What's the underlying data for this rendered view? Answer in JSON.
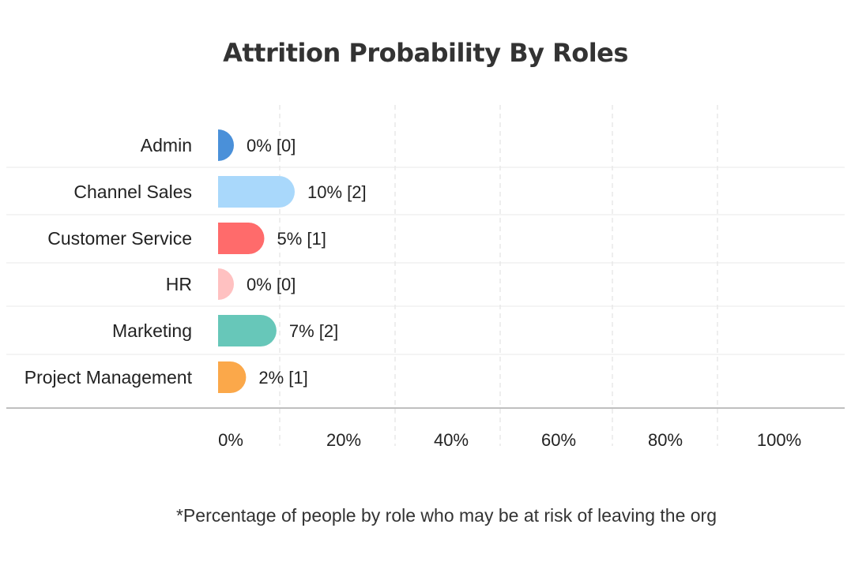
{
  "colors": {
    "admin": "#4a90d9",
    "channel_sales": "#a9d8fb",
    "customer_service": "#ff6b6b",
    "hr": "#ffc1c1",
    "marketing": "#67c7b9",
    "project_management": "#fba84a"
  },
  "chart_data": {
    "type": "bar",
    "orientation": "horizontal",
    "title": "Attrition Probability By Roles",
    "footnote": "*Percentage of people by role who may be at risk of leaving the org",
    "categories": [
      "Admin",
      "Channel Sales",
      "Customer Service",
      "HR",
      "Marketing",
      "Project Management"
    ],
    "values": [
      0,
      10,
      5,
      0,
      7,
      2
    ],
    "counts": [
      0,
      2,
      1,
      0,
      2,
      1
    ],
    "value_labels": [
      "0% [0]",
      "10% [2]",
      "5% [1]",
      "0% [0]",
      "7% [2]",
      "2% [1]"
    ],
    "bar_colors": [
      "#4a90d9",
      "#a9d8fb",
      "#ff6b6b",
      "#ffc1c1",
      "#67c7b9",
      "#fba84a"
    ],
    "x_ticks": [
      0,
      20,
      40,
      60,
      80,
      100
    ],
    "x_tick_labels": [
      "0%",
      "20%",
      "40%",
      "60%",
      "80%",
      "100%"
    ],
    "xlim": [
      0,
      100
    ],
    "grid": "vertical dashed",
    "legend": "none"
  }
}
